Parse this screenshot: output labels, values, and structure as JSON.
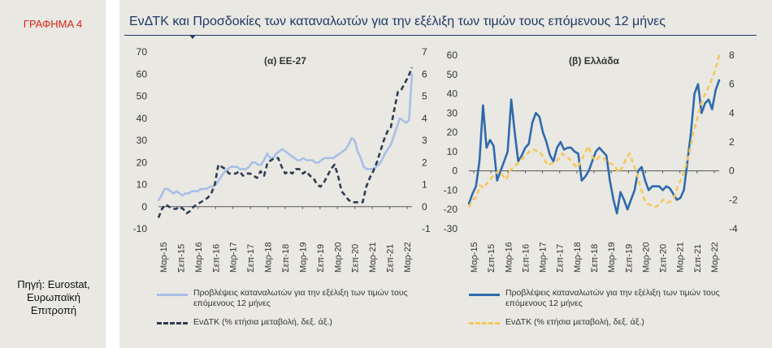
{
  "figure_label": "ΓΡΑΦΗΜΑ 4",
  "source_text": "Πηγή: Eurostat, Ευρωπαϊκή Επιτροπή",
  "title": "ΕνΔΤΚ και Προσδοκίες των καταναλωτών για την εξέλιξη των τιμών τους επόμενους 12 μήνες",
  "colors": {
    "title": "#1f3864",
    "fig_label": "#e2231a",
    "eu_light": "#a9bfe6",
    "eu_dark": "#2e3c52",
    "gr_blue": "#2e6aad",
    "gr_yellow": "#f6c75b"
  },
  "chart_data": [
    {
      "type": "line",
      "title": "(α) ΕΕ-27",
      "x_tick_labels": [
        "Μαρ-15",
        "Σεπ-15",
        "Μαρ-16",
        "Σεπ-16",
        "Μαρ-17",
        "Σεπ-17",
        "Μαρ-18",
        "Σεπ-18",
        "Μαρ-19",
        "Σεπ-19",
        "Μαρ-20",
        "Σεπ-20",
        "Μαρ-21",
        "Σεπ-21",
        "Μαρ-22"
      ],
      "y_left": {
        "min": -10,
        "max": 70,
        "ticks": [
          "-10",
          "0",
          "10",
          "20",
          "30",
          "40",
          "50",
          "60",
          "70"
        ]
      },
      "y_right": {
        "min": -1,
        "max": 7,
        "ticks": [
          "-1",
          "0",
          "1",
          "2",
          "3",
          "4",
          "5",
          "6",
          "7"
        ]
      },
      "grid": false,
      "legend_position": "bottom",
      "series": [
        {
          "name": "Προβλέψεις καταναλωτών για την εξέλιξη των τιμών τους επόμενους 12 μήνες",
          "axis": "left",
          "style": "solid",
          "color": "#a9bfe6",
          "values": [
            3,
            5,
            8,
            8,
            7,
            6,
            7,
            6,
            5,
            6,
            6,
            7,
            7,
            7,
            8,
            8,
            8,
            9,
            9,
            10,
            12,
            14,
            16,
            17,
            18,
            18,
            18,
            17,
            17,
            17,
            18,
            20,
            20,
            19,
            19,
            21,
            24,
            22,
            22,
            24,
            25,
            26,
            25,
            24,
            23,
            22,
            21,
            21,
            22,
            21,
            21,
            21,
            20,
            20,
            21,
            22,
            22,
            22,
            22,
            23,
            24,
            25,
            26,
            28,
            31,
            30,
            25,
            22,
            18,
            17,
            17,
            17,
            18,
            19,
            21,
            24,
            26,
            28,
            32,
            36,
            40,
            39,
            38,
            39,
            60
          ]
        },
        {
          "name": "ΕνΔΤΚ (% ετήσια μεταβολή, δεξ. άξ.)",
          "axis": "right",
          "style": "dashed",
          "color": "#2e3c52",
          "values": [
            -0.5,
            -0.1,
            0.1,
            0.0,
            -0.1,
            -0.1,
            0.0,
            -0.1,
            -0.3,
            -0.2,
            0.0,
            0.1,
            0.2,
            0.3,
            0.4,
            0.6,
            1.0,
            1.9,
            1.8,
            1.7,
            1.5,
            1.5,
            1.5,
            1.6,
            1.4,
            1.5,
            1.5,
            1.4,
            1.3,
            1.6,
            1.4,
            2.0,
            2.1,
            2.2,
            2.2,
            1.8,
            1.5,
            1.6,
            1.5,
            1.7,
            1.7,
            1.5,
            1.6,
            1.4,
            1.3,
            1.0,
            0.9,
            1.1,
            1.4,
            1.7,
            1.9,
            1.4,
            0.7,
            0.5,
            0.3,
            0.2,
            0.2,
            0.2,
            0.2,
            0.9,
            1.3,
            1.6,
            2.0,
            2.5,
            3.0,
            3.4,
            3.6,
            4.4,
            5.2,
            5.3,
            5.6,
            5.9,
            6.3
          ]
        }
      ]
    },
    {
      "type": "line",
      "title": "(β) Ελλάδα",
      "x_tick_labels": [
        "Μαρ-15",
        "Σεπ-15",
        "Μαρ-16",
        "Σεπ-16",
        "Μαρ-17",
        "Σεπ-17",
        "Μαρ-18",
        "Σεπ-18",
        "Μαρ-19",
        "Σεπ-19",
        "Μαρ-20",
        "Σεπ-20",
        "Μαρ-21",
        "Σεπ-21",
        "Μαρ-22"
      ],
      "y_left": {
        "min": -30,
        "max": 60,
        "ticks": [
          "-30",
          "-20",
          "-10",
          "0",
          "10",
          "20",
          "30",
          "40",
          "50",
          "60"
        ]
      },
      "y_right": {
        "min": -4,
        "max": 8,
        "ticks": [
          "-4",
          "-2",
          "0",
          "2",
          "4",
          "6",
          "8"
        ]
      },
      "grid": false,
      "legend_position": "bottom",
      "series": [
        {
          "name": "Προβλέψεις καταναλωτών για την εξέλιξη των τιμών τους επόμενους 12 μήνες",
          "axis": "left",
          "style": "solid",
          "color": "#2e6aad",
          "values": [
            -17,
            -12,
            -8,
            5,
            34,
            12,
            16,
            13,
            -5,
            0,
            5,
            10,
            37,
            20,
            5,
            8,
            12,
            14,
            25,
            30,
            28,
            20,
            15,
            8,
            5,
            12,
            15,
            11,
            12,
            12,
            10,
            9,
            -5,
            -3,
            0,
            5,
            10,
            12,
            10,
            8,
            -5,
            -15,
            -22,
            -11,
            -15,
            -20,
            -15,
            -10,
            0,
            2,
            -5,
            -10,
            -8,
            -8,
            -8,
            -10,
            -8,
            -9,
            -12,
            -15,
            -14,
            -10,
            5,
            20,
            40,
            45,
            30,
            35,
            37,
            32,
            42,
            47
          ]
        },
        {
          "name": "ΕνΔΤΚ (% ετήσια μεταβολή, δεξ. άξ.)",
          "axis": "right",
          "style": "dashed",
          "color": "#f6c75b",
          "values": [
            -2.5,
            -2.0,
            -1.8,
            -1.0,
            -1.2,
            -0.8,
            -0.5,
            -0.2,
            0.0,
            -0.3,
            -0.6,
            0.0,
            0.3,
            0.5,
            0.8,
            1.0,
            1.3,
            1.5,
            1.4,
            1.3,
            0.9,
            0.4,
            0.5,
            0.6,
            0.8,
            1.2,
            1.0,
            0.8,
            0.5,
            0.2,
            0.7,
            1.2,
            1.7,
            1.0,
            0.7,
            1.0,
            0.9,
            0.6,
            0.5,
            0.4,
            -0.1,
            0.2,
            0.8,
            1.2,
            0.5,
            -0.2,
            -1.2,
            -2.0,
            -2.3,
            -2.4,
            -2.5,
            -2.3,
            -2.0,
            -2.2,
            -2.1,
            -1.8,
            -1.0,
            -0.5,
            0.3,
            1.2,
            2.5,
            3.5,
            4.5,
            5.2,
            5.7,
            6.3,
            7.0,
            8.0
          ]
        }
      ]
    }
  ]
}
